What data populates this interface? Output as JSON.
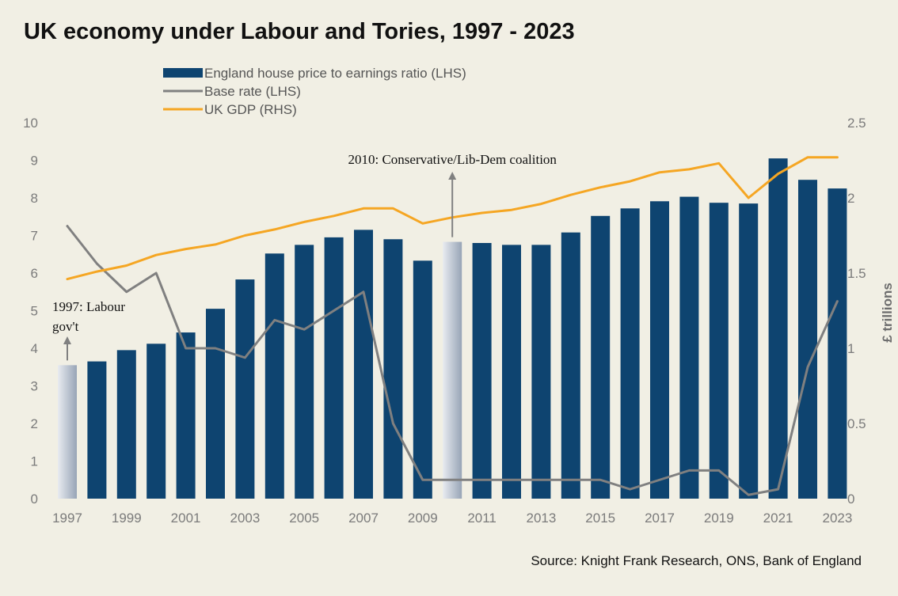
{
  "title": "UK economy under Labour and Tories, 1997 - 2023",
  "source": "Source: Knight Frank Research, ONS, Bank of England",
  "colors": {
    "bar": "#0e4470",
    "bar_highlight_from": "#e8ebf0",
    "bar_highlight_to": "#97a4b6",
    "base_rate": "#808080",
    "gdp": "#f5a623",
    "background": "#f1efe4"
  },
  "chart_data": {
    "type": "bar",
    "x": [
      1997,
      1998,
      1999,
      2000,
      2001,
      2002,
      2003,
      2004,
      2005,
      2006,
      2007,
      2008,
      2009,
      2010,
      2011,
      2012,
      2013,
      2014,
      2015,
      2016,
      2017,
      2018,
      2019,
      2020,
      2021,
      2022,
      2023
    ],
    "x_tick_labels": [
      "1997",
      "1999",
      "2001",
      "2003",
      "2005",
      "2007",
      "2009",
      "2011",
      "2013",
      "2015",
      "2017",
      "2019",
      "2021",
      "2023"
    ],
    "highlight_years": [
      1997,
      2010
    ],
    "series": [
      {
        "name": "England house price to earnings ratio (LHS)",
        "type": "bar",
        "axis": "left",
        "values": [
          3.55,
          3.65,
          3.95,
          4.12,
          4.42,
          5.05,
          5.83,
          6.52,
          6.75,
          6.95,
          7.15,
          6.9,
          6.33,
          6.83,
          6.8,
          6.75,
          6.75,
          7.08,
          7.52,
          7.72,
          7.91,
          8.03,
          7.87,
          7.85,
          9.05,
          8.48,
          8.25
        ]
      },
      {
        "name": "Base rate (LHS)",
        "type": "line",
        "axis": "left",
        "values": [
          7.25,
          6.25,
          5.5,
          6.0,
          4.0,
          4.0,
          3.75,
          4.75,
          4.5,
          5.0,
          5.5,
          2.0,
          0.5,
          0.5,
          0.5,
          0.5,
          0.5,
          0.5,
          0.5,
          0.25,
          0.5,
          0.75,
          0.75,
          0.1,
          0.25,
          3.5,
          5.25
        ]
      },
      {
        "name": "UK GDP (RHS)",
        "type": "line",
        "axis": "right",
        "values": [
          1.46,
          1.51,
          1.55,
          1.62,
          1.66,
          1.69,
          1.75,
          1.79,
          1.84,
          1.88,
          1.93,
          1.93,
          1.83,
          1.87,
          1.9,
          1.92,
          1.96,
          2.02,
          2.07,
          2.11,
          2.17,
          2.19,
          2.23,
          2.0,
          2.16,
          2.27,
          2.27
        ]
      }
    ],
    "y_left": {
      "ylim": [
        0,
        10
      ],
      "ticks": [
        "0",
        "1",
        "2",
        "3",
        "4",
        "5",
        "6",
        "7",
        "8",
        "9",
        "10"
      ]
    },
    "y_right": {
      "ylim": [
        0,
        2.5
      ],
      "ticks": [
        "0",
        "0.5",
        "1",
        "1.5",
        "2",
        "2.5"
      ],
      "label": "£ trillions"
    },
    "legend_position": "top-left",
    "grid": false,
    "annotations": [
      {
        "year": 1997,
        "lines": [
          "1997: Labour",
          "gov't"
        ]
      },
      {
        "year": 2010,
        "lines": [
          "2010: Conservative/Lib-Dem  coalition"
        ]
      }
    ]
  }
}
